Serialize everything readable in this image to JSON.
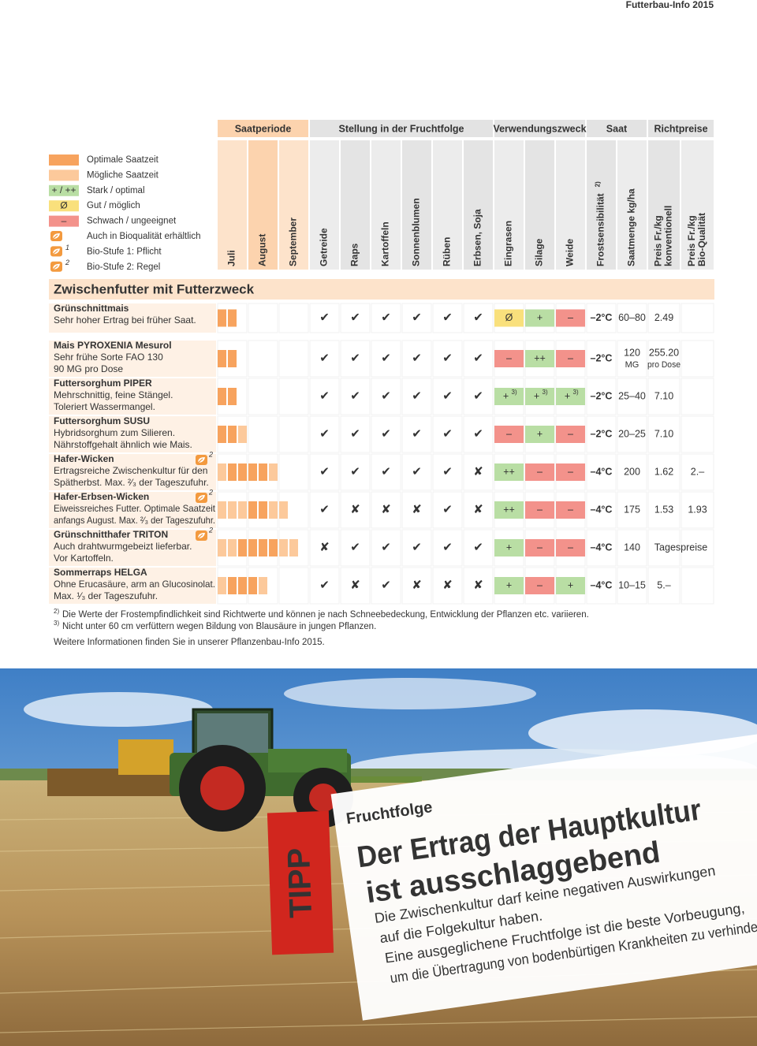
{
  "header": {
    "running_title": "Futterbau-Info 2015"
  },
  "column_groups": [
    "Saatperiode",
    "Stellung in der Fruchtfolge",
    "Verwendungszweck",
    "Saat",
    "Richtpreise"
  ],
  "legend": [
    {
      "label": "Optimale Saatzeit",
      "color": "#f7a35e"
    },
    {
      "label": "Mögliche Saatzeit",
      "color": "#fcc99b"
    },
    {
      "symbol": "+ / ++",
      "label": "Stark / optimal",
      "color": "#b9dea4"
    },
    {
      "symbol": "Ø",
      "label": "Gut / möglich",
      "color": "#f9e07c"
    },
    {
      "symbol": "–",
      "label": "Schwach / ungeeignet",
      "color": "#f3928b"
    },
    {
      "label": "Auch in Bioqualität erhältlich",
      "icon": true
    },
    {
      "symbol": "1",
      "label": "Bio-Stufe 1: Pflicht",
      "icon": true
    },
    {
      "symbol": "2",
      "label": "Bio-Stufe 2: Regel",
      "icon": true
    }
  ],
  "columns": [
    {
      "lines": [
        "Juli"
      ]
    },
    {
      "lines": [
        "August"
      ]
    },
    {
      "lines": [
        "September"
      ]
    },
    {
      "lines": [
        "Getreide"
      ]
    },
    {
      "lines": [
        "Raps"
      ]
    },
    {
      "lines": [
        "Kartoffeln"
      ]
    },
    {
      "lines": [
        "Sonnenblumen"
      ]
    },
    {
      "lines": [
        "Rüben"
      ]
    },
    {
      "lines": [
        "Erbsen, Soja"
      ]
    },
    {
      "lines": [
        "Eingrasen"
      ]
    },
    {
      "lines": [
        "Silage"
      ]
    },
    {
      "lines": [
        "Weide"
      ]
    },
    {
      "lines": [
        "Frostsensibilität"
      ],
      "sup": "2)"
    },
    {
      "lines": [
        "Saatmenge kg/ha"
      ]
    },
    {
      "lines": [
        "Preis Fr./kg",
        "konventionell"
      ]
    },
    {
      "lines": [
        "Preis Fr./kg",
        "Bio-Qualität"
      ]
    }
  ],
  "section_title": "Zwischenfutter mit Futterzweck",
  "rows": [
    {
      "name": "Grünschnittmais",
      "desc": [
        "Sehr hoher Ertrag bei früher Saat."
      ],
      "saatzeit": [
        "#f7a35e",
        "#f7a35e"
      ],
      "fruchtfolge": [
        "✔",
        "✔",
        "✔",
        "✔",
        "✔",
        "✔"
      ],
      "verwendung": [
        {
          "text": "Ø",
          "color": "#f9e07c"
        },
        {
          "text": "+",
          "color": "#b9dea4"
        },
        {
          "text": "–",
          "color": "#f3928b"
        }
      ],
      "frost": "–2°C",
      "saatmenge": [
        "60–80"
      ],
      "preis_konv": [
        "2.49"
      ]
    },
    {
      "name": "Mais PYROXENIA Mesurol",
      "desc": [
        "Sehr frühe Sorte FAO 130",
        "90 MG pro Dose"
      ],
      "saatzeit": [
        "#f7a35e",
        "#f7a35e"
      ],
      "fruchtfolge": [
        "✔",
        "✔",
        "✔",
        "✔",
        "✔",
        "✔"
      ],
      "verwendung": [
        {
          "text": "–",
          "color": "#f3928b"
        },
        {
          "text": "++",
          "color": "#b9dea4"
        },
        {
          "text": "–",
          "color": "#f3928b"
        }
      ],
      "frost": "–2°C",
      "saatmenge": [
        "120",
        "MG"
      ],
      "preis_konv": [
        "255.20",
        "pro Dose"
      ]
    },
    {
      "name": "Futtersorghum PIPER",
      "desc": [
        "Mehrschnittig, feine Stängel.",
        "Toleriert Wassermangel."
      ],
      "saatzeit": [
        "#f7a35e",
        "#f7a35e"
      ],
      "fruchtfolge": [
        "✔",
        "✔",
        "✔",
        "✔",
        "✔",
        "✔"
      ],
      "verwendung": [
        {
          "text": "+",
          "sup": "3)",
          "color": "#b9dea4"
        },
        {
          "text": "+",
          "sup": "3)",
          "color": "#b9dea4"
        },
        {
          "text": "+",
          "sup": "3)",
          "color": "#b9dea4"
        }
      ],
      "frost": "–2°C",
      "saatmenge": [
        "25–40"
      ],
      "preis_konv": [
        "7.10"
      ]
    },
    {
      "name": "Futtersorghum SUSU",
      "desc": [
        "Hybridsorghum zum Silieren.",
        "Nährstoffgehalt ähnlich wie Mais."
      ],
      "saatzeit": [
        "#f7a35e",
        "#f7a35e",
        "#fcc99b"
      ],
      "fruchtfolge": [
        "✔",
        "✔",
        "✔",
        "✔",
        "✔",
        "✔"
      ],
      "verwendung": [
        {
          "text": "–",
          "color": "#f3928b"
        },
        {
          "text": "+",
          "color": "#b9dea4"
        },
        {
          "text": "–",
          "color": "#f3928b"
        }
      ],
      "frost": "–2°C",
      "saatmenge": [
        "20–25"
      ],
      "preis_konv": [
        "7.10"
      ]
    },
    {
      "name": "Hafer-Wicken",
      "bio": "2",
      "desc": [
        "Ertragsreiche Zwischenkultur für den",
        "Spätherbst. Max. ²⁄₃ der Tageszufuhr."
      ],
      "saatzeit": [
        "#fcc99b",
        "#f7a35e",
        "#f7a35e",
        "#f7a35e",
        "#f7a35e",
        "#fcc99b"
      ],
      "fruchtfolge": [
        "✔",
        "✔",
        "✔",
        "✔",
        "✔",
        "✘"
      ],
      "verwendung": [
        {
          "text": "++",
          "color": "#b9dea4"
        },
        {
          "text": "–",
          "color": "#f3928b"
        },
        {
          "text": "–",
          "color": "#f3928b"
        }
      ],
      "frost": "–4°C",
      "saatmenge": [
        "200"
      ],
      "preis_konv": [
        "1.62"
      ],
      "preis_bio": "2.–"
    },
    {
      "name": "Hafer-Erbsen-Wicken",
      "bio": "2",
      "desc": [
        "Eiweissreiches Futter. Optimale Saatzeit",
        "anfangs August. Max. ²⁄₃ der Tageszufuhr."
      ],
      "saatzeit": [
        "#fcc99b",
        "#fcc99b",
        "#fcc99b",
        "#f7a35e",
        "#f7a35e",
        "#fcc99b",
        "#fcc99b"
      ],
      "fruchtfolge": [
        "✔",
        "✘",
        "✘",
        "✘",
        "✔",
        "✘"
      ],
      "verwendung": [
        {
          "text": "++",
          "color": "#b9dea4"
        },
        {
          "text": "–",
          "color": "#f3928b"
        },
        {
          "text": "–",
          "color": "#f3928b"
        }
      ],
      "frost": "–4°C",
      "saatmenge": [
        "175"
      ],
      "preis_konv": [
        "1.53"
      ],
      "preis_bio": "1.93"
    },
    {
      "name": "Grünschnitthafer TRITON",
      "bio": "2",
      "desc": [
        "Auch drahtwurmgebeizt lieferbar.",
        "Vor Kartoffeln."
      ],
      "saatzeit": [
        "#fcc99b",
        "#fcc99b",
        "#f7a35e",
        "#f7a35e",
        "#f7a35e",
        "#f7a35e",
        "#fcc99b",
        "#fcc99b"
      ],
      "fruchtfolge": [
        "✘",
        "✔",
        "✔",
        "✔",
        "✔",
        "✔"
      ],
      "verwendung": [
        {
          "text": "+",
          "color": "#b9dea4"
        },
        {
          "text": "–",
          "color": "#f3928b"
        },
        {
          "text": "–",
          "color": "#f3928b"
        }
      ],
      "frost": "–4°C",
      "saatmenge": [
        "140"
      ],
      "preis_span": "Tagespreise"
    },
    {
      "name": "Sommerraps HELGA",
      "desc": [
        "Ohne Erucasäure, arm an Glucosinolat.",
        "Max. ¹⁄₃ der Tageszufuhr."
      ],
      "saatzeit": [
        "#fcc99b",
        "#f7a35e",
        "#f7a35e",
        "#f7a35e",
        "#fcc99b"
      ],
      "fruchtfolge": [
        "✔",
        "✘",
        "✔",
        "✘",
        "✘",
        "✘"
      ],
      "verwendung": [
        {
          "text": "+",
          "color": "#b9dea4"
        },
        {
          "text": "–",
          "color": "#f3928b"
        },
        {
          "text": "+",
          "color": "#b9dea4"
        }
      ],
      "frost": "–4°C",
      "saatmenge": [
        "10–15"
      ],
      "preis_konv": [
        "5.–"
      ]
    }
  ],
  "footnotes": [
    {
      "mark": "2)",
      "text": "Die Werte der Frostempfindlichkeit sind Richtwerte und können je nach Schneebedeckung, Entwicklung der Pflanzen etc. variieren."
    },
    {
      "mark": "3)",
      "text": "Nicht unter 60 cm verfüttern wegen Bildung von Blausäure in jungen Pflanzen."
    }
  ],
  "more_info": "Weitere Informationen finden Sie in unserer Pflanzenbau-Info 2015.",
  "tipp": {
    "badge": "TIPP",
    "kicker": "Fruchtfolge",
    "title_lines": [
      "Der Ertrag der Hauptkultur",
      "ist ausschlaggebend"
    ],
    "body_lines": [
      "Die Zwischenkultur darf keine negativen Auswirkungen",
      "auf die Folgekultur haben.",
      "Eine ausgeglichene Fruchtfolge ist die beste Vorbeugung,",
      "um die Übertragung von bodenbürtigen Krankheiten zu verhindern."
    ]
  }
}
